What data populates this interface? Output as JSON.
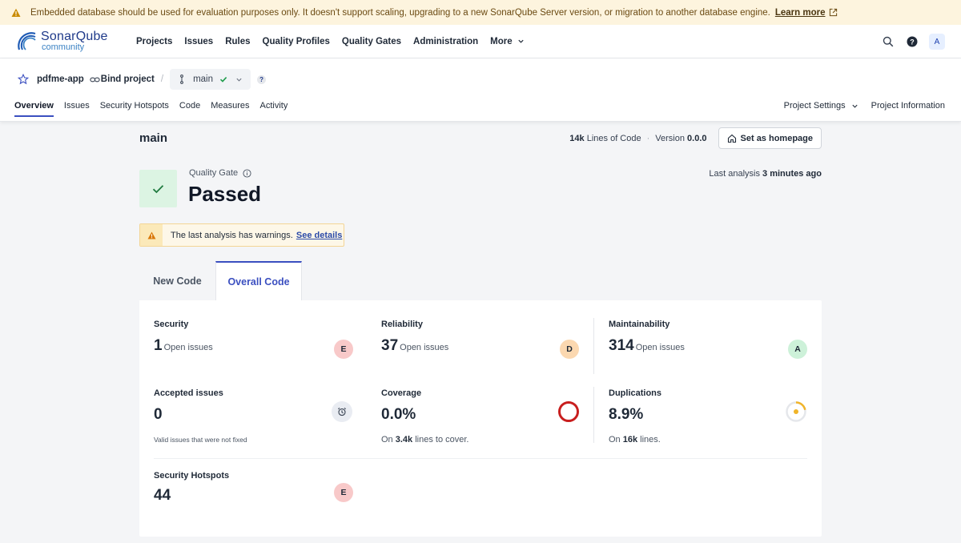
{
  "banner": {
    "text": "Embedded database should be used for evaluation purposes only. It doesn't support scaling, upgrading to a new SonarQube Server version, or migration to another database engine.",
    "link": "Learn more"
  },
  "brand": {
    "name": "SonarQube",
    "edition": "community"
  },
  "nav": [
    "Projects",
    "Issues",
    "Rules",
    "Quality Profiles",
    "Quality Gates",
    "Administration",
    "More"
  ],
  "user": {
    "avatar": "A"
  },
  "project": {
    "name": "pdfme-app",
    "bind_label": "Bind project",
    "separator": "/",
    "branch": "main",
    "help": "?"
  },
  "project_tabs": [
    "Overview",
    "Issues",
    "Security Hotspots",
    "Code",
    "Measures",
    "Activity"
  ],
  "project_right_tabs": [
    "Project Settings",
    "Project Information"
  ],
  "main": {
    "branch_title": "main",
    "loc_value": "14k",
    "loc_label": "Lines of Code",
    "dot": "·",
    "version_label": "Version",
    "version_value": "0.0.0",
    "homepage_button": "Set as homepage"
  },
  "quality_gate": {
    "label": "Quality Gate",
    "status": "Passed",
    "last_analysis_label": "Last analysis",
    "last_analysis_value": "3 minutes ago"
  },
  "warning": {
    "text": "The last analysis has warnings.",
    "link": "See details"
  },
  "code_tabs": [
    "New Code",
    "Overall Code"
  ],
  "metrics": {
    "security": {
      "title": "Security",
      "value": "1",
      "sub": "Open issues",
      "rating": "E"
    },
    "reliability": {
      "title": "Reliability",
      "value": "37",
      "sub": "Open issues",
      "rating": "D"
    },
    "maintainability": {
      "title": "Maintainability",
      "value": "314",
      "sub": "Open issues",
      "rating": "A"
    },
    "accepted": {
      "title": "Accepted issues",
      "value": "0",
      "note": "Valid issues that were not fixed"
    },
    "coverage": {
      "title": "Coverage",
      "value": "0.0%",
      "note_prefix": "On",
      "note_value": "3.4k",
      "note_suffix": "lines to cover.",
      "percent": 0
    },
    "duplications": {
      "title": "Duplications",
      "value": "8.9%",
      "note_prefix": "On",
      "note_value": "16k",
      "note_suffix": "lines.",
      "percent": 8.9
    },
    "hotspots": {
      "title": "Security Hotspots",
      "value": "44",
      "rating": "E"
    }
  },
  "colors": {
    "accent": "#3b4fc0",
    "passed_bg": "#dcf4e3",
    "passed_check": "#1f7a3f",
    "coverage_ring": "#c81e1e",
    "duplication_ring": "#f0b429",
    "warning": "#d97706"
  }
}
